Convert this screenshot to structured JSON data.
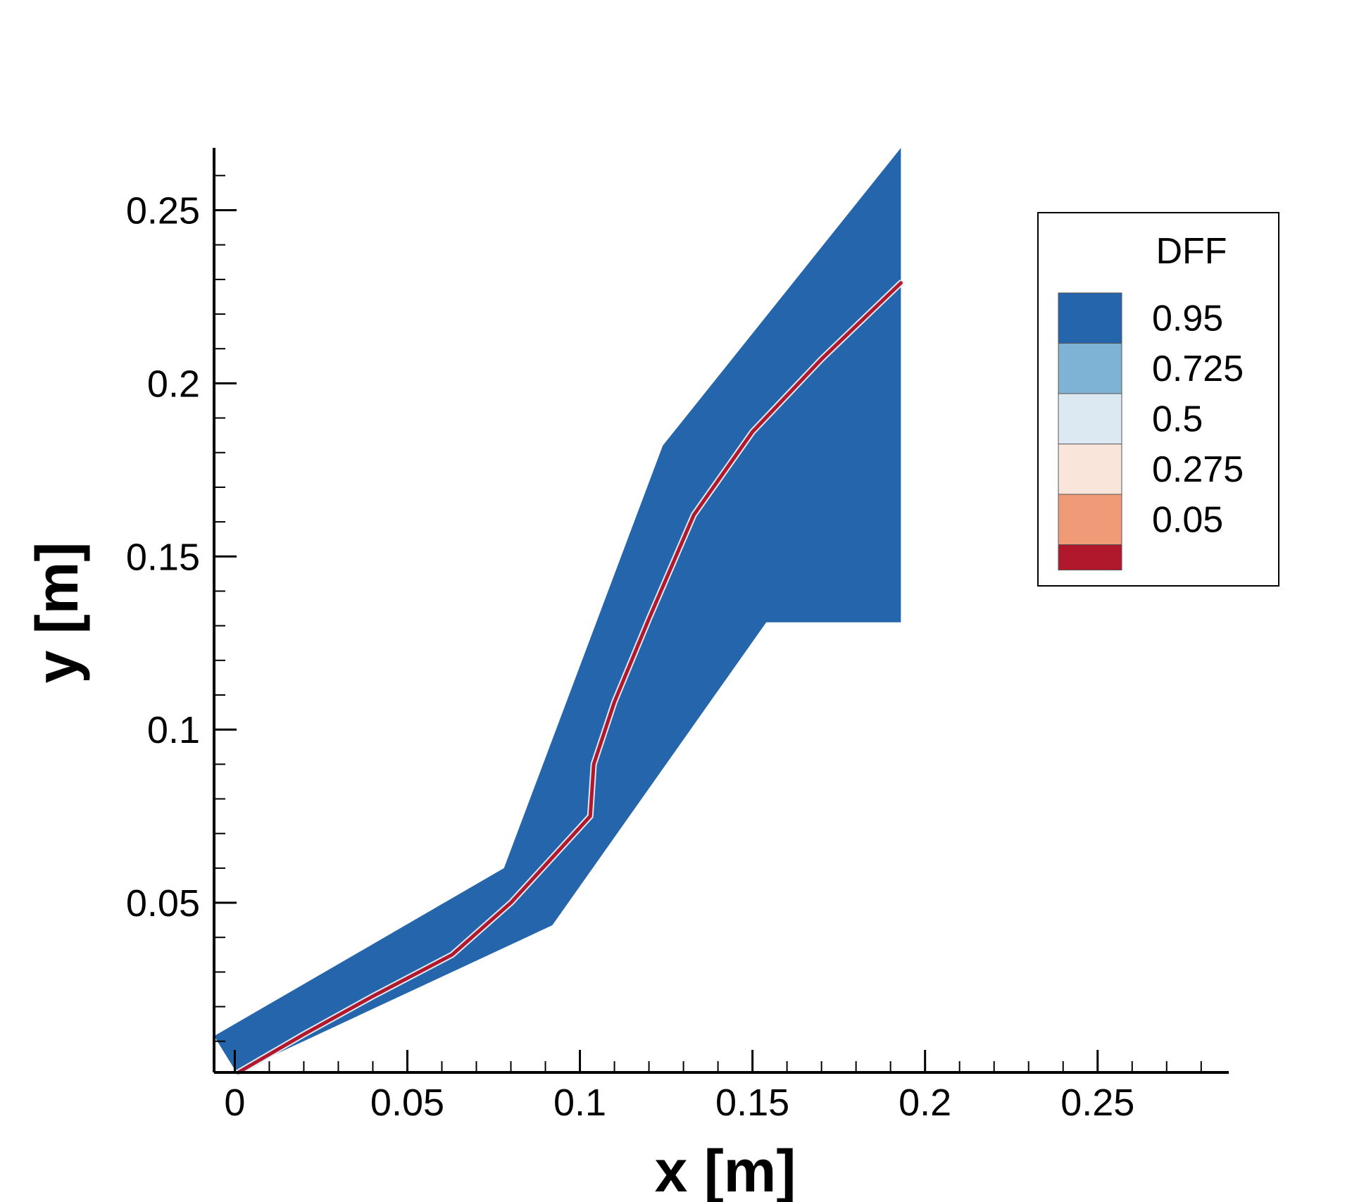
{
  "chart_data": {
    "type": "contour",
    "xlabel": "x [m]",
    "ylabel": "y [m]",
    "xlim": [
      -0.006,
      0.288
    ],
    "ylim": [
      0.001,
      0.268
    ],
    "xticks": [
      0,
      0.05,
      0.1,
      0.15,
      0.2,
      0.25
    ],
    "xtick_labels": [
      "0",
      "0.05",
      "0.1",
      "0.15",
      "0.2",
      "0.25"
    ],
    "yticks": [
      0.05,
      0.1,
      0.15,
      0.2,
      0.25
    ],
    "ytick_labels": [
      "0.05",
      "0.1",
      "0.15",
      "0.2",
      "0.25"
    ],
    "legend": {
      "title": "DFF",
      "position": "top-right",
      "levels": [
        {
          "label": "0.95",
          "color": "#2465ab"
        },
        {
          "label": "0.725",
          "color": "#7fb3d6"
        },
        {
          "label": "0.5",
          "color": "#dde9f2"
        },
        {
          "label": "0.275",
          "color": "#f9e5da"
        },
        {
          "label": "0.05",
          "color": "#f19a78"
        },
        {
          "label": "",
          "color": "#b2182b"
        }
      ]
    },
    "domain_outline": [
      [
        -0.006,
        0.0115
      ],
      [
        0.078,
        0.06
      ],
      [
        0.124,
        0.182
      ],
      [
        0.193,
        0.268
      ],
      [
        0.193,
        0.131
      ],
      [
        0.154,
        0.131
      ],
      [
        0.092,
        0.0435
      ],
      [
        0.0005,
        0.001
      ]
    ],
    "flame_front": [
      [
        0.001,
        0.001
      ],
      [
        0.02,
        0.012
      ],
      [
        0.04,
        0.023
      ],
      [
        0.063,
        0.035
      ],
      [
        0.08,
        0.05
      ],
      [
        0.103,
        0.075
      ],
      [
        0.104,
        0.09
      ],
      [
        0.11,
        0.108
      ],
      [
        0.12,
        0.132
      ],
      [
        0.133,
        0.162
      ],
      [
        0.15,
        0.186
      ],
      [
        0.17,
        0.207
      ],
      [
        0.193,
        0.229
      ]
    ]
  }
}
